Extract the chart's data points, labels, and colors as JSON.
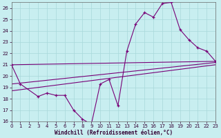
{
  "background_color": "#c8eef0",
  "grid_color": "#a8d8da",
  "line_color": "#770077",
  "xlabel": "Windchill (Refroidissement éolien,°C)",
  "xlim": [
    0,
    23
  ],
  "ylim": [
    16,
    26.5
  ],
  "yticks": [
    16,
    17,
    18,
    19,
    20,
    21,
    22,
    23,
    24,
    25,
    26
  ],
  "xticks": [
    0,
    1,
    2,
    3,
    4,
    5,
    6,
    7,
    8,
    9,
    10,
    11,
    12,
    13,
    14,
    15,
    16,
    17,
    18,
    19,
    20,
    21,
    22,
    23
  ],
  "series_x": [
    0,
    1,
    3,
    4,
    5,
    6,
    7,
    8,
    9,
    10,
    11,
    12,
    13,
    14,
    15,
    16,
    17,
    18,
    19,
    20,
    21,
    22,
    23
  ],
  "series_y": [
    21.0,
    19.3,
    18.2,
    18.5,
    18.3,
    18.3,
    17.0,
    16.2,
    15.75,
    19.3,
    19.7,
    17.4,
    22.2,
    24.6,
    25.6,
    25.2,
    26.4,
    26.5,
    24.1,
    23.2,
    22.5,
    22.2,
    21.3
  ],
  "trend1_x": [
    0,
    23
  ],
  "trend1_y": [
    21.0,
    21.3
  ],
  "trend2_x": [
    0,
    23
  ],
  "trend2_y": [
    19.3,
    21.2
  ],
  "trend3_x": [
    0,
    23
  ],
  "trend3_y": [
    18.7,
    21.0
  ]
}
